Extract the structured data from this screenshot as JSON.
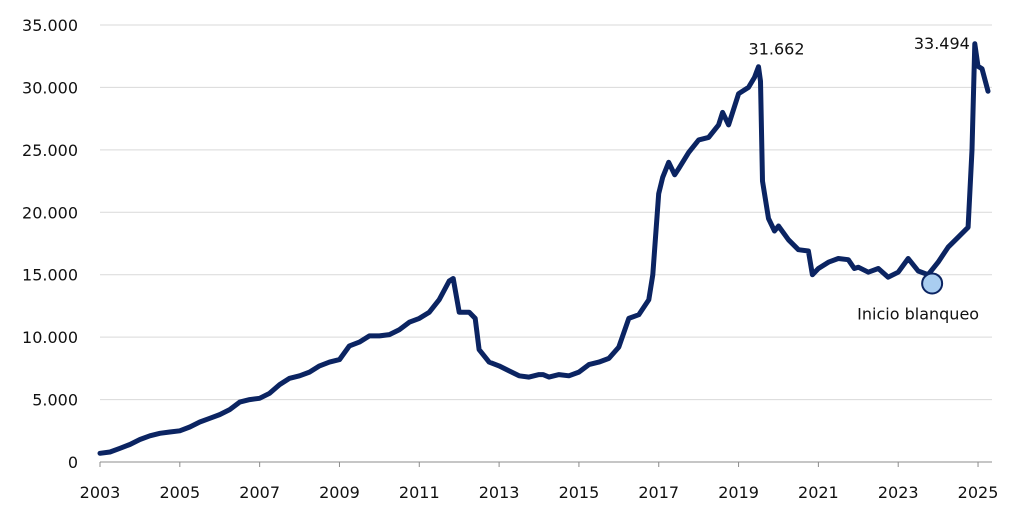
{
  "chart_data": {
    "type": "line",
    "title": "",
    "xlabel": "",
    "ylabel": "",
    "xlim": [
      2003,
      2025.35
    ],
    "ylim": [
      0,
      35000
    ],
    "y_ticks": [
      0,
      5000,
      10000,
      15000,
      20000,
      25000,
      30000,
      35000
    ],
    "y_tick_labels": [
      "0",
      "5.000",
      "10.000",
      "15.000",
      "20.000",
      "25.000",
      "30.000",
      "35.000"
    ],
    "x_ticks": [
      2003,
      2005,
      2007,
      2009,
      2011,
      2013,
      2015,
      2017,
      2019,
      2021,
      2023,
      2025
    ],
    "x_tick_labels": [
      "2003",
      "2005",
      "2007",
      "2009",
      "2011",
      "2013",
      "2015",
      "2017",
      "2019",
      "2021",
      "2023",
      "2025"
    ],
    "grid": true,
    "line_color": "#0b2462",
    "series": [
      {
        "x": [
          2003.0,
          2003.25,
          2003.5,
          2003.75,
          2004.0,
          2004.25,
          2004.5,
          2004.75,
          2005.0,
          2005.25,
          2005.5,
          2005.75,
          2006.0,
          2006.25,
          2006.5,
          2006.75,
          2007.0,
          2007.25,
          2007.5,
          2007.75,
          2008.0,
          2008.25,
          2008.5,
          2008.75,
          2009.0,
          2009.25,
          2009.5,
          2009.75,
          2010.0,
          2010.25,
          2010.5,
          2010.75,
          2011.0,
          2011.25,
          2011.5,
          2011.75,
          2011.85,
          2012.0,
          2012.25,
          2012.4,
          2012.5,
          2012.75,
          2013.0,
          2013.25,
          2013.5,
          2013.75,
          2014.0,
          2014.1,
          2014.25,
          2014.5,
          2014.75,
          2015.0,
          2015.25,
          2015.5,
          2015.75,
          2016.0,
          2016.25,
          2016.5,
          2016.75,
          2016.85,
          2017.0,
          2017.1,
          2017.25,
          2017.4,
          2017.5,
          2017.75,
          2018.0,
          2018.25,
          2018.5,
          2018.6,
          2018.75,
          2019.0,
          2019.25,
          2019.4,
          2019.5,
          2019.55,
          2019.6,
          2019.75,
          2019.9,
          2020.0,
          2020.25,
          2020.5,
          2020.75,
          2020.85,
          2021.0,
          2021.25,
          2021.5,
          2021.75,
          2021.9,
          2022.0,
          2022.25,
          2022.5,
          2022.75,
          2023.0,
          2023.25,
          2023.5,
          2023.75,
          2024.0,
          2024.25,
          2024.5,
          2024.75,
          2024.85,
          2024.92,
          2025.0,
          2025.1,
          2025.25
        ],
        "y": [
          700,
          800,
          1100,
          1400,
          1800,
          2100,
          2300,
          2400,
          2500,
          2800,
          3200,
          3500,
          3800,
          4200,
          4800,
          5000,
          5100,
          5500,
          6200,
          6700,
          6900,
          7200,
          7700,
          8000,
          8200,
          9300,
          9600,
          10100,
          10100,
          10200,
          10600,
          11200,
          11500,
          12000,
          13000,
          14500,
          14700,
          12000,
          12000,
          11500,
          9000,
          8000,
          7700,
          7300,
          6900,
          6800,
          7000,
          7000,
          6800,
          7000,
          6900,
          7200,
          7800,
          8000,
          8300,
          9200,
          11500,
          11800,
          13000,
          15000,
          21500,
          22800,
          24000,
          23000,
          23500,
          24800,
          25800,
          26000,
          27000,
          28000,
          27000,
          29500,
          30000,
          30800,
          31662,
          30500,
          22500,
          19500,
          18500,
          18900,
          17800,
          17000,
          16900,
          15000,
          15500,
          16000,
          16300,
          16200,
          15500,
          15600,
          15200,
          15500,
          14800,
          15200,
          16300,
          15300,
          15000,
          16000,
          17200,
          18000,
          18800,
          25000,
          33494,
          31700,
          31500,
          29700
        ]
      }
    ],
    "annotations": [
      {
        "x": 2019.5,
        "y": 31662,
        "text": "31.662"
      },
      {
        "x": 2024.92,
        "y": 33494,
        "text": "33.494"
      }
    ],
    "marker": {
      "x": 2023.85,
      "y": 14300,
      "label": "Inicio blanqueo",
      "fill": "#a9cdf0",
      "stroke": "#0b2462"
    }
  }
}
